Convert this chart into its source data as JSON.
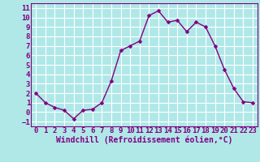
{
  "x": [
    0,
    1,
    2,
    3,
    4,
    5,
    6,
    7,
    8,
    9,
    10,
    11,
    12,
    13,
    14,
    15,
    16,
    17,
    18,
    19,
    20,
    21,
    22,
    23
  ],
  "y": [
    2.0,
    1.0,
    0.5,
    0.2,
    -0.7,
    0.2,
    0.3,
    1.0,
    3.3,
    6.5,
    7.0,
    7.5,
    10.2,
    10.7,
    9.5,
    9.7,
    8.5,
    9.5,
    9.0,
    7.0,
    4.5,
    2.5,
    1.1,
    1.0
  ],
  "line_color": "#800080",
  "marker_color": "#800080",
  "bg_color": "#b0e8e8",
  "grid_color": "#ffffff",
  "xlabel": "Windchill (Refroidissement éolien,°C)",
  "xlabel_color": "#800080",
  "tick_color": "#800080",
  "spine_color": "#800080",
  "ylim": [
    -1.5,
    11.5
  ],
  "xlim": [
    -0.5,
    23.5
  ],
  "yticks": [
    -1,
    0,
    1,
    2,
    3,
    4,
    5,
    6,
    7,
    8,
    9,
    10,
    11
  ],
  "xticks": [
    0,
    1,
    2,
    3,
    4,
    5,
    6,
    7,
    8,
    9,
    10,
    11,
    12,
    13,
    14,
    15,
    16,
    17,
    18,
    19,
    20,
    21,
    22,
    23
  ],
  "marker_size": 2.5,
  "line_width": 1.0,
  "font_size": 6.5,
  "label_font_size": 7.0
}
